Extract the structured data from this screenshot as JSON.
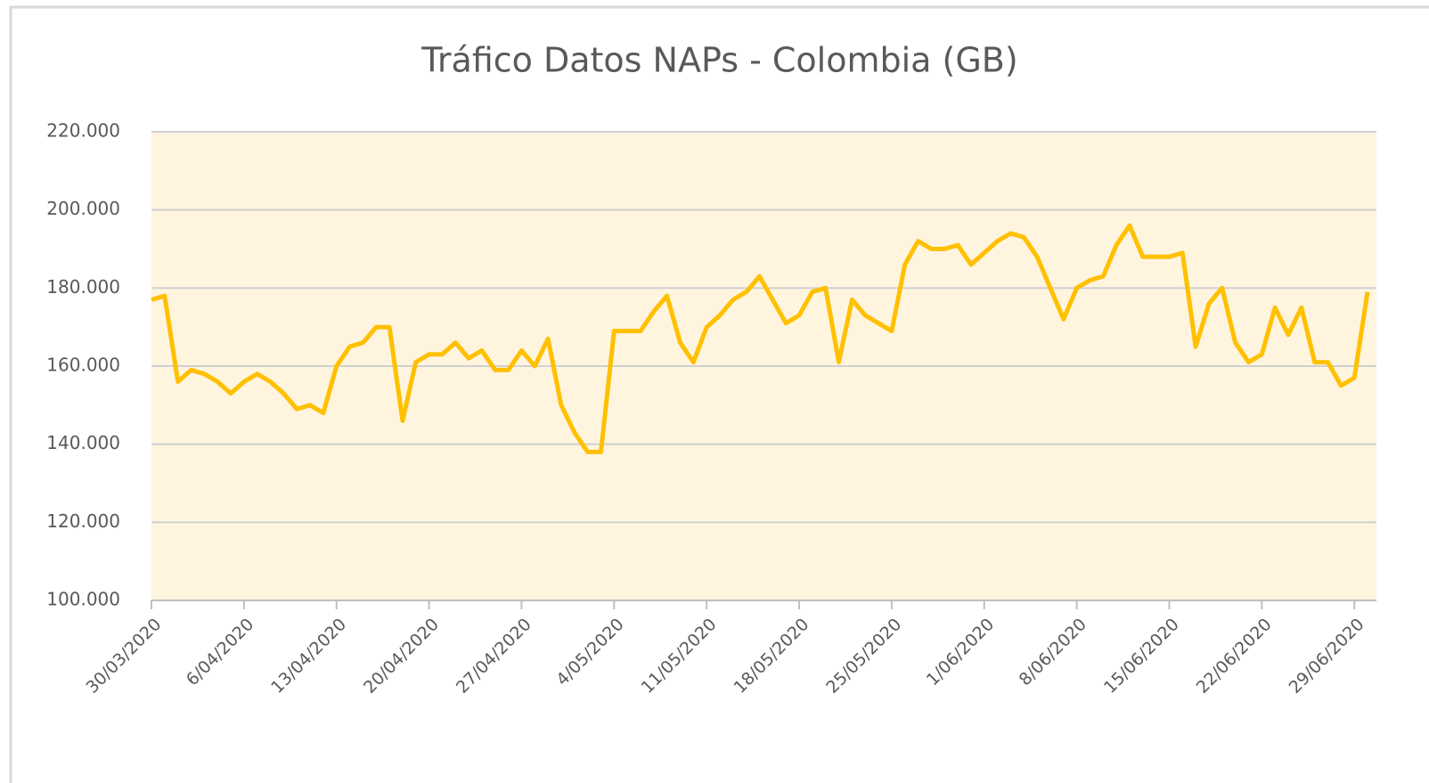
{
  "chart_data": {
    "type": "line",
    "title": "Tráfico Datos   NAPs - Colombia (GB)",
    "categories": [
      "30/03/2020",
      null,
      null,
      null,
      null,
      null,
      null,
      "6/04/2020",
      null,
      null,
      null,
      null,
      null,
      null,
      "13/04/2020",
      null,
      null,
      null,
      null,
      null,
      null,
      "20/04/2020",
      null,
      null,
      null,
      null,
      null,
      null,
      "27/04/2020",
      null,
      null,
      null,
      null,
      null,
      null,
      "4/05/2020",
      null,
      null,
      null,
      null,
      null,
      null,
      "11/05/2020",
      null,
      null,
      null,
      null,
      null,
      null,
      "18/05/2020",
      null,
      null,
      null,
      null,
      null,
      null,
      "25/05/2020",
      null,
      null,
      null,
      null,
      null,
      null,
      "1/06/2020",
      null,
      null,
      null,
      null,
      null,
      null,
      "8/06/2020",
      null,
      null,
      null,
      null,
      null,
      null,
      "15/06/2020",
      null,
      null,
      null,
      null,
      null,
      null,
      "22/06/2020",
      null,
      null,
      null,
      null,
      null,
      null,
      "29/06/2020",
      null
    ],
    "values": [
      177000,
      178000,
      156000,
      159000,
      158000,
      156000,
      153000,
      156000,
      158000,
      156000,
      153000,
      149000,
      150000,
      148000,
      160000,
      165000,
      166000,
      170000,
      170000,
      146000,
      161000,
      163000,
      163000,
      166000,
      162000,
      164000,
      159000,
      159000,
      164000,
      160000,
      167000,
      150000,
      143000,
      138000,
      138000,
      169000,
      169000,
      169000,
      174000,
      178000,
      166000,
      161000,
      170000,
      173000,
      177000,
      179000,
      183000,
      177000,
      171000,
      173000,
      179000,
      180000,
      161000,
      177000,
      173000,
      171000,
      169000,
      186000,
      192000,
      190000,
      190000,
      191000,
      186000,
      189000,
      192000,
      194000,
      193000,
      188000,
      180000,
      172000,
      180000,
      182000,
      183000,
      191000,
      196000,
      188000,
      188000,
      188000,
      189000,
      165000,
      176000,
      180000,
      166000,
      161000,
      163000,
      175000,
      168000,
      175000,
      161000,
      161000,
      155000,
      157000,
      179000
    ],
    "color": "#ffc000",
    "ylim": [
      100000,
      220000
    ],
    "yticks": [
      {
        "value": 100000,
        "label": "100.000"
      },
      {
        "value": 120000,
        "label": "120.000"
      },
      {
        "value": 140000,
        "label": "140.000"
      },
      {
        "value": 160000,
        "label": "160.000"
      },
      {
        "value": 180000,
        "label": "180.000"
      },
      {
        "value": 200000,
        "label": "200.000"
      },
      {
        "value": 220000,
        "label": "220.000"
      }
    ],
    "grid": true
  }
}
